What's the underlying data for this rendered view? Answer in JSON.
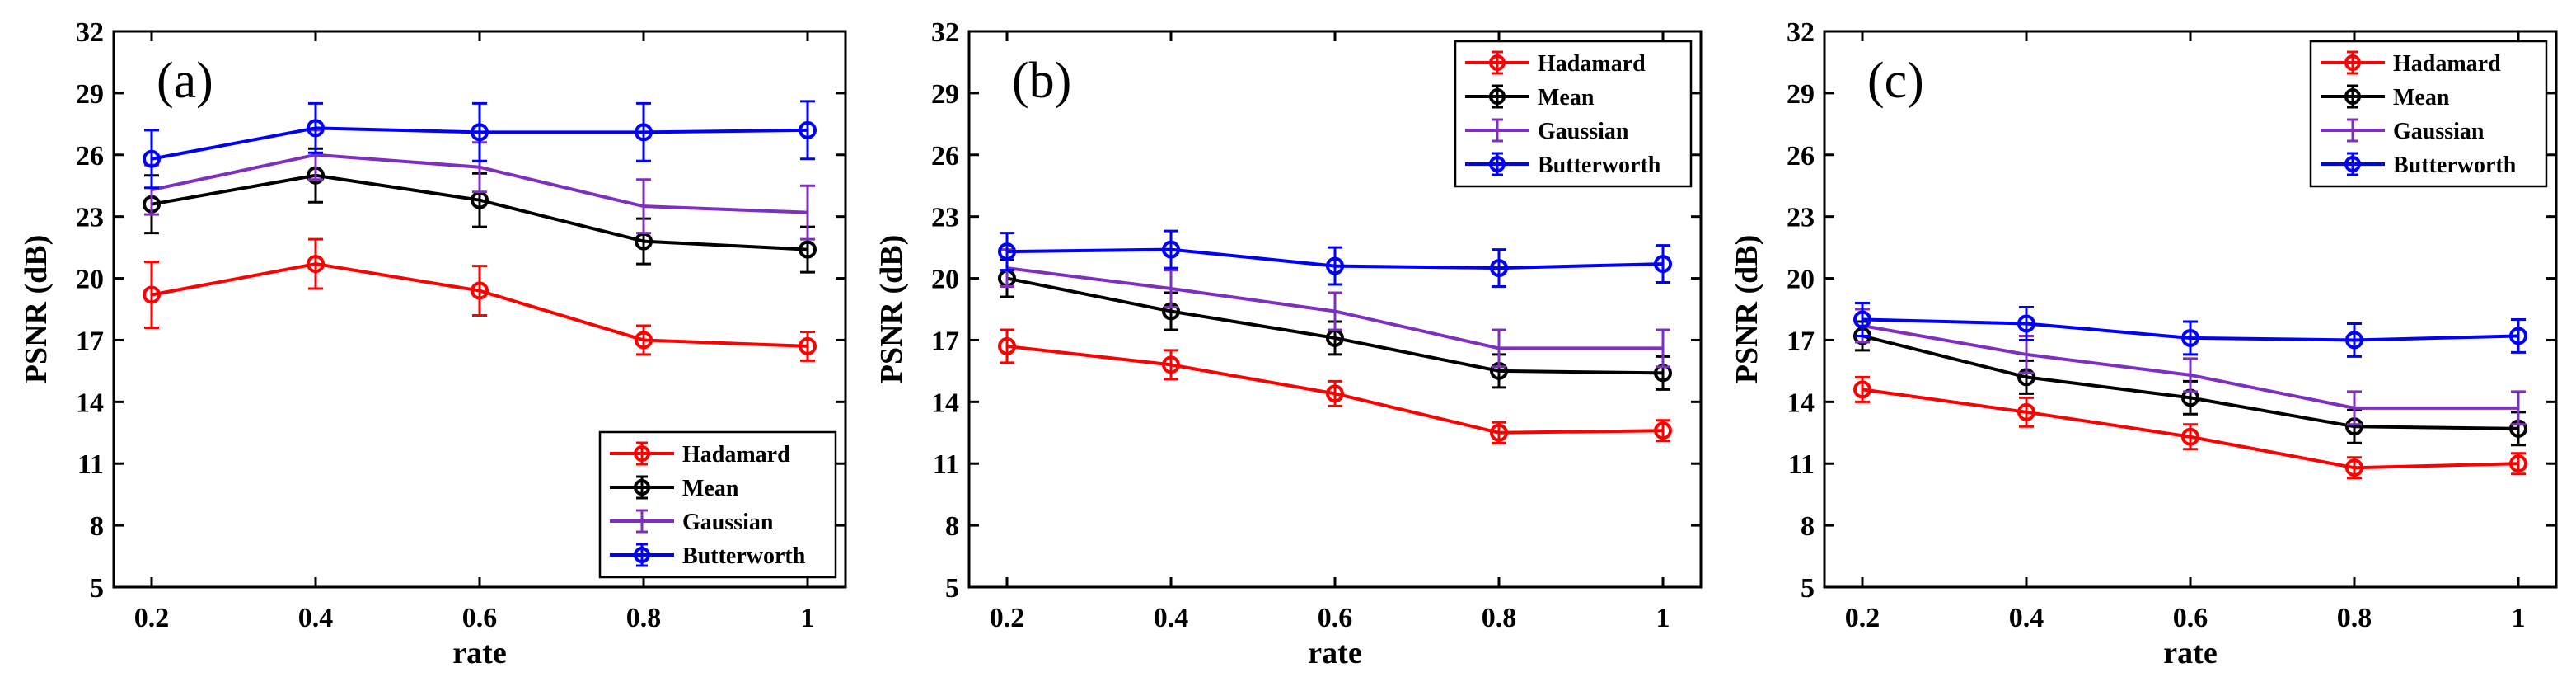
{
  "figure": {
    "series_colors": {
      "Hadamard": "#ff0000",
      "Mean": "#000000",
      "Gaussian": "#7f2fbf",
      "Butterworth": "#0000ff"
    }
  },
  "chart_data": [
    {
      "type": "line",
      "panel_label": "(a)",
      "xlabel": "rate",
      "ylabel": "PSNR (dB)",
      "x": [
        0.2,
        0.4,
        0.6,
        0.8,
        1
      ],
      "x_tick_labels": [
        "0.2",
        "0.4",
        "0.6",
        "0.8",
        "1"
      ],
      "ylim": [
        5,
        32
      ],
      "y_ticks": [
        5,
        8,
        11,
        14,
        17,
        20,
        23,
        26,
        29,
        32
      ],
      "legend_position": "bottom-right",
      "series": [
        {
          "name": "Hadamard",
          "color": "#ff0000",
          "marker": "circle",
          "values": [
            19.2,
            20.7,
            19.4,
            17.0,
            16.7
          ],
          "errors": [
            1.6,
            1.2,
            1.2,
            0.7,
            0.7
          ]
        },
        {
          "name": "Mean",
          "color": "#000000",
          "marker": "circle",
          "values": [
            23.6,
            25.0,
            23.8,
            21.8,
            21.4
          ],
          "errors": [
            1.4,
            1.3,
            1.3,
            1.1,
            1.1
          ]
        },
        {
          "name": "Gaussian",
          "color": "#7f2fbf",
          "marker": "none",
          "values": [
            24.3,
            26.0,
            25.4,
            23.5,
            23.2
          ],
          "errors": [
            1.2,
            1.2,
            1.2,
            1.3,
            1.3
          ]
        },
        {
          "name": "Butterworth",
          "color": "#0000ff",
          "marker": "circle",
          "values": [
            25.8,
            27.3,
            27.1,
            27.1,
            27.2
          ],
          "errors": [
            1.4,
            1.2,
            1.4,
            1.4,
            1.4
          ]
        }
      ]
    },
    {
      "type": "line",
      "panel_label": "(b)",
      "xlabel": "rate",
      "ylabel": "PSNR (dB)",
      "x": [
        0.2,
        0.4,
        0.6,
        0.8,
        1
      ],
      "x_tick_labels": [
        "0.2",
        "0.4",
        "0.6",
        "0.8",
        "1"
      ],
      "ylim": [
        5,
        32
      ],
      "y_ticks": [
        5,
        8,
        11,
        14,
        17,
        20,
        23,
        26,
        29,
        32
      ],
      "legend_position": "top-right",
      "series": [
        {
          "name": "Hadamard",
          "color": "#ff0000",
          "marker": "circle",
          "values": [
            16.7,
            15.8,
            14.4,
            12.5,
            12.6
          ],
          "errors": [
            0.8,
            0.7,
            0.6,
            0.5,
            0.5
          ]
        },
        {
          "name": "Mean",
          "color": "#000000",
          "marker": "circle",
          "values": [
            20.0,
            18.4,
            17.1,
            15.5,
            15.4
          ],
          "errors": [
            0.9,
            0.9,
            0.8,
            0.8,
            0.8
          ]
        },
        {
          "name": "Gaussian",
          "color": "#7f2fbf",
          "marker": "none",
          "values": [
            20.5,
            19.5,
            18.4,
            16.6,
            16.6
          ],
          "errors": [
            0.9,
            0.9,
            0.9,
            0.9,
            0.9
          ]
        },
        {
          "name": "Butterworth",
          "color": "#0000ff",
          "marker": "circle",
          "values": [
            21.3,
            21.4,
            20.6,
            20.5,
            20.7
          ],
          "errors": [
            0.9,
            0.9,
            0.9,
            0.9,
            0.9
          ]
        }
      ]
    },
    {
      "type": "line",
      "panel_label": "(c)",
      "xlabel": "rate",
      "ylabel": "PSNR (dB)",
      "x": [
        0.2,
        0.4,
        0.6,
        0.8,
        1
      ],
      "x_tick_labels": [
        "0.2",
        "0.4",
        "0.6",
        "0.8",
        "1"
      ],
      "ylim": [
        5,
        32
      ],
      "y_ticks": [
        5,
        8,
        11,
        14,
        17,
        20,
        23,
        26,
        29,
        32
      ],
      "legend_position": "top-right",
      "series": [
        {
          "name": "Hadamard",
          "color": "#ff0000",
          "marker": "circle",
          "values": [
            14.6,
            13.5,
            12.3,
            10.8,
            11.0
          ],
          "errors": [
            0.6,
            0.7,
            0.6,
            0.5,
            0.5
          ]
        },
        {
          "name": "Mean",
          "color": "#000000",
          "marker": "circle",
          "values": [
            17.2,
            15.2,
            14.2,
            12.8,
            12.7
          ],
          "errors": [
            0.7,
            0.8,
            0.8,
            0.8,
            0.8
          ]
        },
        {
          "name": "Gaussian",
          "color": "#7f2fbf",
          "marker": "none",
          "values": [
            17.7,
            16.3,
            15.3,
            13.7,
            13.7
          ],
          "errors": [
            0.8,
            0.9,
            0.8,
            0.8,
            0.8
          ]
        },
        {
          "name": "Butterworth",
          "color": "#0000ff",
          "marker": "circle",
          "values": [
            18.0,
            17.8,
            17.1,
            17.0,
            17.2
          ],
          "errors": [
            0.8,
            0.8,
            0.8,
            0.8,
            0.8
          ]
        }
      ]
    }
  ]
}
